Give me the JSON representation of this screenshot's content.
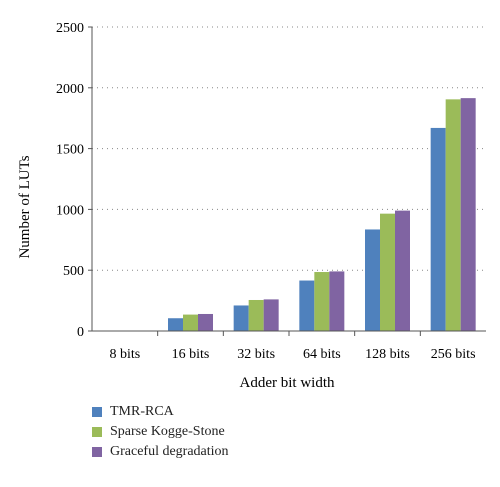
{
  "chart_data": {
    "type": "bar",
    "categories": [
      "8 bits",
      "16 bits",
      "32 bits",
      "64 bits",
      "128 bits",
      "256 bits"
    ],
    "series": [
      {
        "name": "TMR-RCA",
        "color": "#4f81bd",
        "values": [
          0,
          105,
          210,
          415,
          835,
          1670
        ]
      },
      {
        "name": "Sparse Kogge-Stone",
        "color": "#9bbb59",
        "values": [
          0,
          135,
          255,
          485,
          965,
          1905
        ]
      },
      {
        "name": "Graceful degradation",
        "color": "#8064a2",
        "values": [
          0,
          140,
          260,
          490,
          990,
          1915
        ]
      }
    ],
    "xlabel": "Adder bit width",
    "ylabel": "Number of  LUTs",
    "ylim": [
      0,
      2500
    ],
    "yticks": [
      0,
      500,
      1000,
      1500,
      2000,
      2500
    ],
    "grid": "horizontal dotted",
    "legend_position": "bottom-left"
  }
}
